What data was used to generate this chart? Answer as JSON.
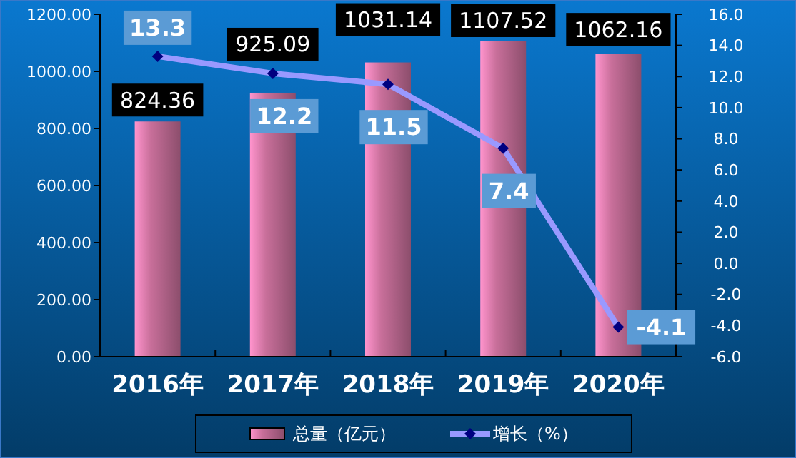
{
  "chart_data": {
    "type": "bar",
    "categories": [
      "2016年",
      "2017年",
      "2018年",
      "2019年",
      "2020年"
    ],
    "series": [
      {
        "name": "总量（亿元）",
        "color": "#c86f9a",
        "values": [
          824.36,
          925.09,
          1031.14,
          1107.52,
          1062.16
        ]
      },
      {
        "name": "增长（%）",
        "type": "line",
        "axis": "y2",
        "color": "#9999ff",
        "marker": "diamond",
        "values": [
          13.3,
          12.2,
          11.5,
          7.4,
          -4.1
        ]
      }
    ],
    "ylim": [
      0,
      1200
    ],
    "yticks": [
      {
        "value": 0,
        "label": "0.00"
      },
      {
        "value": 200,
        "label": "200.00"
      },
      {
        "value": 400,
        "label": "400.00"
      },
      {
        "value": 600,
        "label": "600.00"
      },
      {
        "value": 800,
        "label": "800.00"
      },
      {
        "value": 1000,
        "label": "1000.00"
      },
      {
        "value": 1200,
        "label": "1200.00"
      }
    ],
    "y2lim": [
      -6,
      16
    ],
    "y2ticks": [
      {
        "value": -6,
        "label": "-6.0"
      },
      {
        "value": -4,
        "label": "-4.0"
      },
      {
        "value": -2,
        "label": "-2.0"
      },
      {
        "value": 0,
        "label": "0.0"
      },
      {
        "value": 2,
        "label": "2.0"
      },
      {
        "value": 4,
        "label": "4.0"
      },
      {
        "value": 6,
        "label": "6.0"
      },
      {
        "value": 8,
        "label": "8.0"
      },
      {
        "value": 10,
        "label": "10.0"
      },
      {
        "value": 12,
        "label": "12.0"
      },
      {
        "value": 14,
        "label": "14.0"
      },
      {
        "value": 16,
        "label": "16.0"
      }
    ],
    "data_labels": true,
    "legend": "bottom",
    "grid": false
  }
}
